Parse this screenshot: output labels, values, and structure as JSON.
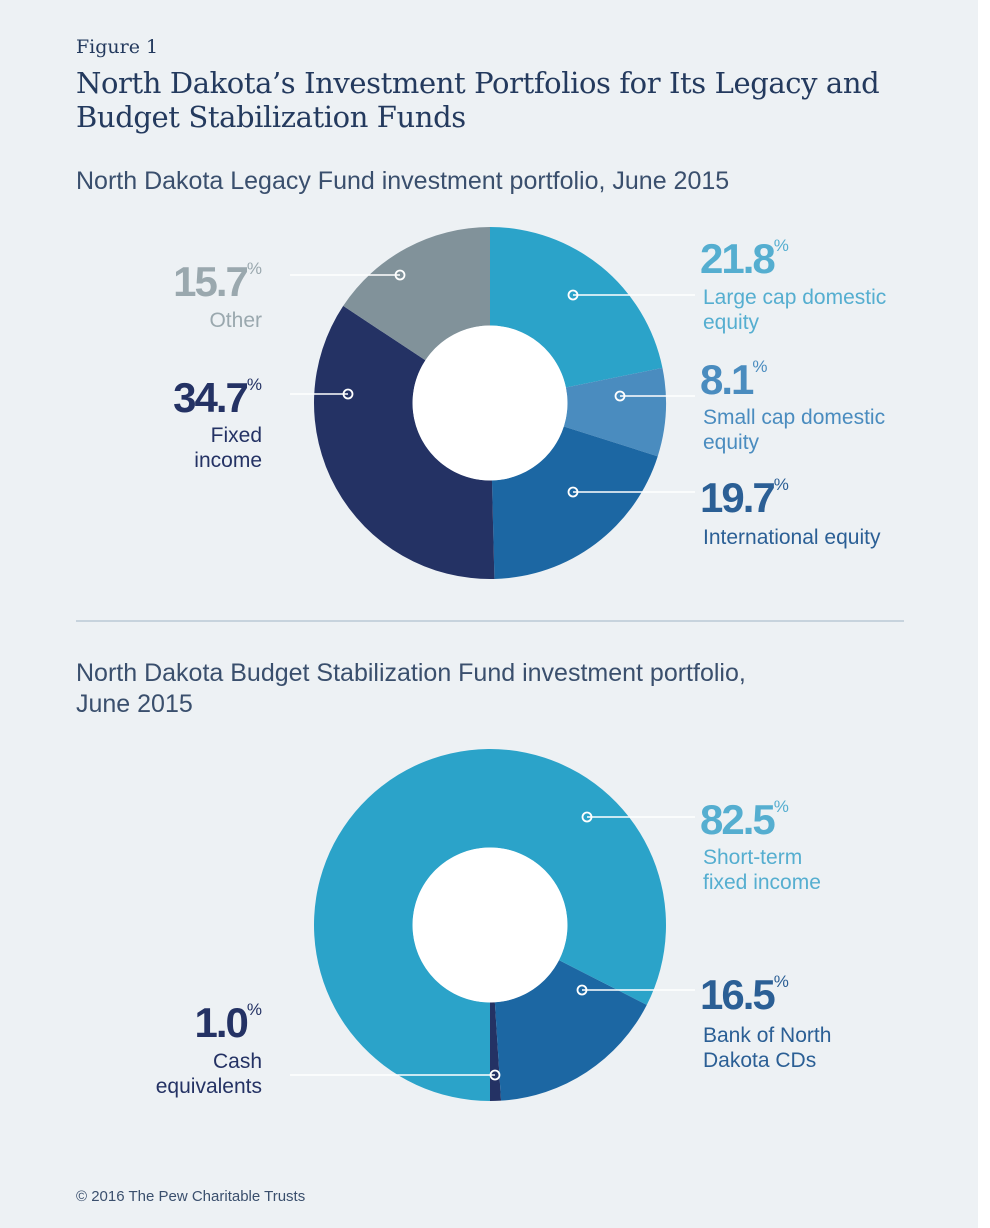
{
  "figure_label": "Figure 1",
  "title_line1": "North Dakota’s Investment Portfolios for Its Legacy and",
  "title_line2": "Budget Stabilization Funds",
  "footer": "© 2016 The Pew Charitable Trusts",
  "chart_data": [
    {
      "type": "pie",
      "subtitle_lines": [
        "North Dakota Legacy Fund investment portfolio, June 2015"
      ],
      "start_angle_deg": 0,
      "direction": "clockwise",
      "hole_ratio": 0.44,
      "percent_sign": "%",
      "slices": [
        {
          "value": 21.8,
          "value_text": "21.8",
          "label_lines": [
            "Large cap domestic",
            "equity"
          ],
          "color": "#2ba3c9",
          "text_color": "#55aed0",
          "label_side": "right"
        },
        {
          "value": 8.1,
          "value_text": "8.1",
          "label_lines": [
            "Small cap domestic",
            "equity"
          ],
          "color": "#4a8cbf",
          "text_color": "#4a8cbf",
          "label_side": "right"
        },
        {
          "value": 19.7,
          "value_text": "19.7",
          "label_lines": [
            "International equity"
          ],
          "color": "#1c67a3",
          "text_color": "#2b5f95",
          "label_side": "right"
        },
        {
          "value": 34.7,
          "value_text": "34.7",
          "label_lines": [
            "Fixed",
            "income"
          ],
          "color": "#243264",
          "text_color": "#243264",
          "label_side": "left"
        },
        {
          "value": 15.7,
          "value_text": "15.7",
          "label_lines": [
            "Other"
          ],
          "color": "#81929a",
          "text_color": "#9aa8ae",
          "label_side": "left"
        }
      ]
    },
    {
      "type": "pie",
      "subtitle_lines": [
        "North Dakota Budget Stabilization Fund investment portfolio,",
        "June 2015"
      ],
      "start_angle_deg": 180,
      "direction": "counterclockwise",
      "hole_ratio": 0.44,
      "percent_sign": "%",
      "slices": [
        {
          "value": 1.0,
          "value_text": "1.0",
          "label_lines": [
            "Cash",
            "equivalents"
          ],
          "color": "#243264",
          "text_color": "#243264",
          "label_side": "left"
        },
        {
          "value": 16.5,
          "value_text": "16.5",
          "label_lines": [
            "Bank of North",
            "Dakota CDs"
          ],
          "color": "#1c67a3",
          "text_color": "#2b5f95",
          "label_side": "right"
        },
        {
          "value": 82.5,
          "value_text": "82.5",
          "label_lines": [
            "Short-term",
            "fixed income"
          ],
          "color": "#2ba3c9",
          "text_color": "#55aed0",
          "label_side": "right"
        }
      ]
    }
  ]
}
